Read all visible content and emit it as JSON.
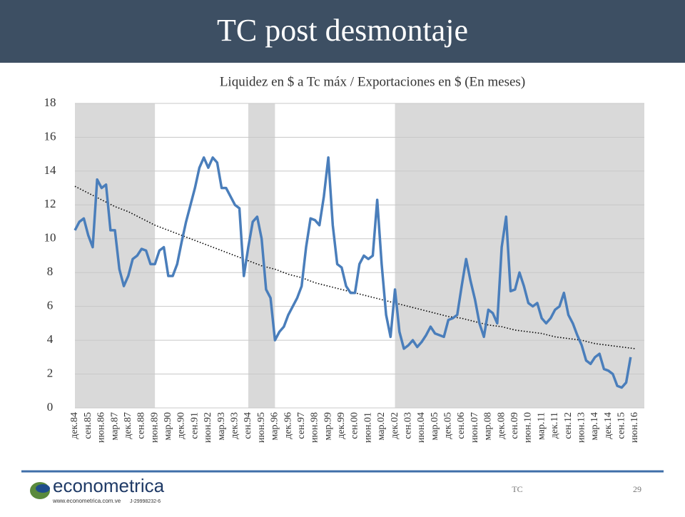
{
  "slide": {
    "title": "TC post desmontaje",
    "footer_label": "TC",
    "page_number": 29,
    "logo": "econometrica",
    "logo_url": "www.econometrica.com.ve",
    "logo_id": "J-29998232-6"
  },
  "chart_data": {
    "type": "line",
    "title": "Liquidez en $ a Tc máx / Exportaciones en $  (En meses)",
    "categories": [
      "дек.84",
      null,
      null,
      "сен.85",
      null,
      null,
      "июн.86",
      null,
      null,
      "мар.87",
      null,
      null,
      "дек.87",
      null,
      null,
      "сен.88",
      null,
      null,
      "июн.89",
      null,
      null,
      "мар.90",
      null,
      null,
      "дек.90",
      null,
      null,
      "сен.91",
      null,
      null,
      "июн.92",
      null,
      null,
      "мар.93",
      null,
      null,
      "дек.93",
      null,
      null,
      "сен.94",
      null,
      null,
      "июн.95",
      null,
      null,
      "мар.96",
      null,
      null,
      "дек.96",
      null,
      null,
      "сен.97",
      null,
      null,
      "июн.98",
      null,
      null,
      "мар.99",
      null,
      null,
      "дек.99",
      null,
      null,
      "сен.00",
      null,
      null,
      "июн.01",
      null,
      null,
      "мар.02",
      null,
      null,
      "дек.02",
      null,
      null,
      "сен.03",
      null,
      null,
      "июн.04",
      null,
      null,
      "мар.05",
      null,
      null,
      "дек.05",
      null,
      null,
      "сен.06",
      null,
      null,
      "июн.07",
      null,
      null,
      "мар.08",
      null,
      null,
      "дек.08",
      null,
      null,
      "сен.09",
      null,
      null,
      "июн.10",
      null,
      null,
      "мар.11",
      null,
      null,
      "дек.11",
      null,
      null,
      "сен.12",
      null,
      null,
      "июн.13",
      null,
      null,
      "мар.14",
      null,
      null,
      "дек.14",
      null,
      null,
      "сен.15",
      null,
      null,
      "июн.16"
    ],
    "values": [
      10.5,
      11.0,
      11.2,
      10.2,
      9.5,
      13.5,
      13.0,
      13.2,
      10.5,
      10.5,
      8.2,
      7.2,
      7.8,
      8.8,
      9.0,
      9.4,
      9.3,
      8.5,
      8.5,
      9.3,
      9.5,
      7.8,
      7.8,
      8.5,
      9.8,
      11.0,
      12.0,
      13.0,
      14.2,
      14.8,
      14.2,
      14.8,
      14.5,
      13.0,
      13.0,
      12.5,
      12.0,
      11.8,
      7.8,
      9.5,
      11.0,
      11.3,
      10.0,
      7.0,
      6.5,
      4.0,
      4.5,
      4.8,
      5.5,
      6.0,
      6.5,
      7.2,
      9.5,
      11.2,
      11.1,
      10.8,
      12.5,
      14.8,
      10.8,
      8.5,
      8.3,
      7.2,
      6.8,
      6.8,
      8.5,
      9.0,
      8.8,
      9.0,
      12.3,
      8.5,
      5.5,
      4.2,
      7.0,
      4.5,
      3.5,
      3.7,
      4.0,
      3.6,
      3.9,
      4.3,
      4.8,
      4.4,
      4.3,
      4.2,
      5.2,
      5.3,
      5.5,
      7.2,
      8.8,
      7.5,
      6.4,
      5.0,
      4.2,
      5.8,
      5.6,
      5.0,
      9.5,
      11.3,
      6.9,
      7.0,
      8.0,
      7.2,
      6.2,
      6.0,
      6.2,
      5.3,
      5.0,
      5.3,
      5.8,
      6.0,
      6.8,
      5.5,
      5.0,
      4.3,
      3.7,
      2.8,
      2.6,
      3.0,
      3.2,
      2.3,
      2.2,
      2.0,
      1.3,
      1.2,
      1.5,
      3.0,
      null
    ],
    "color": "#4a7ebb",
    "trend": {
      "values": [
        13.1,
        12.7,
        12.3,
        11.9,
        11.6,
        11.2,
        10.8,
        10.5,
        10.2,
        9.9,
        9.6,
        9.3,
        9.0,
        8.7,
        8.4,
        8.2,
        7.9,
        7.7,
        7.4,
        7.2,
        7.0,
        6.8,
        6.6,
        6.4,
        6.2,
        6.0,
        5.8,
        5.6,
        5.4,
        5.3,
        5.1,
        4.9,
        4.8,
        4.6,
        4.5,
        4.4,
        4.2,
        4.1,
        4.0,
        3.8,
        3.7,
        3.6,
        3.5
      ],
      "color": "#000000",
      "style": "dotted"
    },
    "shaded_periods": [
      {
        "from": "дек.84",
        "to": "июн.89"
      },
      {
        "from": "сен.94",
        "to": "мар.96"
      },
      {
        "from": "дек.02",
        "to": "июн.16"
      }
    ],
    "shade_color": "#d9d9d9",
    "ylim": [
      0,
      18
    ],
    "yticks": [
      0,
      2,
      4,
      6,
      8,
      10,
      12,
      14,
      16,
      18
    ],
    "grid": true
  }
}
